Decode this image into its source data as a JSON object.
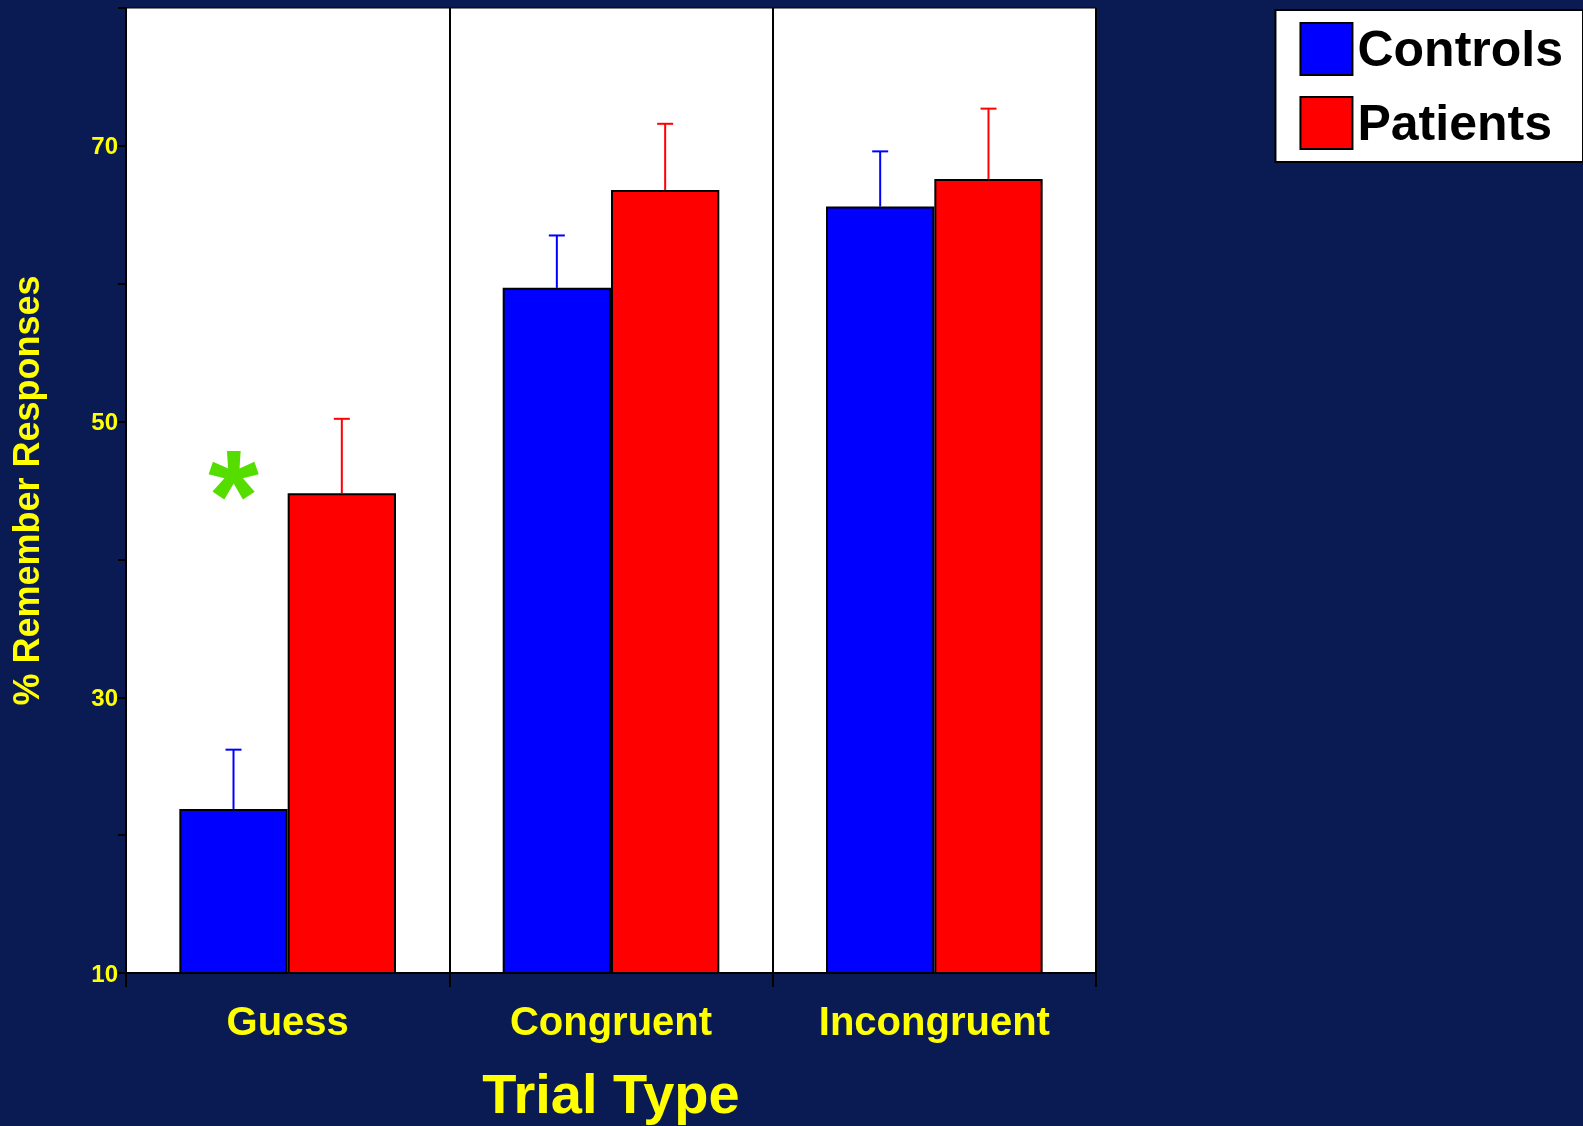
{
  "chart_data": {
    "type": "bar",
    "xlabel": "Trial Type",
    "ylabel": "% Remember Responses",
    "categories": [
      "Guess",
      "Congruent",
      "Incongruent"
    ],
    "series": [
      {
        "name": "Controls",
        "color": "#0000ff",
        "values": [
          21.9,
          59.7,
          65.6
        ],
        "errors": [
          [
            21.9,
            26.2
          ],
          [
            59.7,
            63.5
          ],
          [
            65.6,
            69.6
          ]
        ]
      },
      {
        "name": "Patients",
        "color": "#ff0000",
        "values": [
          44.8,
          66.8,
          67.6
        ],
        "errors": [
          [
            44.8,
            50.2
          ],
          [
            66.8,
            71.6
          ],
          [
            67.6,
            72.7
          ]
        ]
      }
    ],
    "ylim": [
      10,
      80
    ],
    "yticks": [
      10,
      {
        "value": 20,
        "label": null
      },
      30,
      {
        "value": 40,
        "label": null
      },
      50,
      {
        "value": 60,
        "label": null
      },
      70,
      {
        "value": 80,
        "label": null
      }
    ],
    "grid": "x",
    "legend": "top right",
    "annotations": [
      {
        "text": "*",
        "x": "Guess",
        "y": 45
      }
    ]
  }
}
